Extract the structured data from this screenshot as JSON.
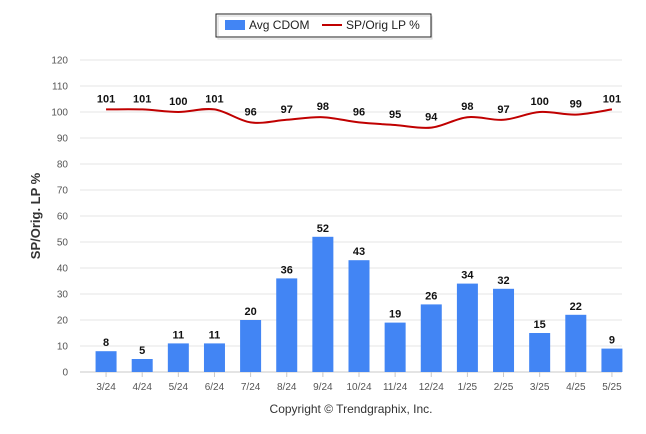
{
  "chart_data": {
    "type": "bar",
    "title": "",
    "xlabel": "",
    "ylabel": "SP/Orig. LP %",
    "ylim": [
      0,
      120
    ],
    "yticks": [
      0,
      10,
      20,
      30,
      40,
      50,
      60,
      70,
      80,
      90,
      100,
      110,
      120
    ],
    "grid": true,
    "legend_position": "top-center",
    "categories": [
      "3/24",
      "4/24",
      "5/24",
      "6/24",
      "7/24",
      "8/24",
      "9/24",
      "10/24",
      "11/24",
      "12/24",
      "1/25",
      "2/25",
      "3/25",
      "4/25",
      "5/25"
    ],
    "series": [
      {
        "name": "Avg CDOM",
        "kind": "bar",
        "color": "#4285f4",
        "values": [
          8,
          5,
          11,
          11,
          20,
          36,
          52,
          43,
          19,
          26,
          34,
          32,
          15,
          22,
          9
        ]
      },
      {
        "name": "SP/Orig LP %",
        "kind": "line",
        "color": "#c00000",
        "values": [
          101,
          101,
          100,
          101,
          96,
          97,
          98,
          96,
          95,
          94,
          98,
          97,
          100,
          99,
          101
        ]
      }
    ],
    "footer": "Copyright © Trendgraphix, Inc."
  }
}
